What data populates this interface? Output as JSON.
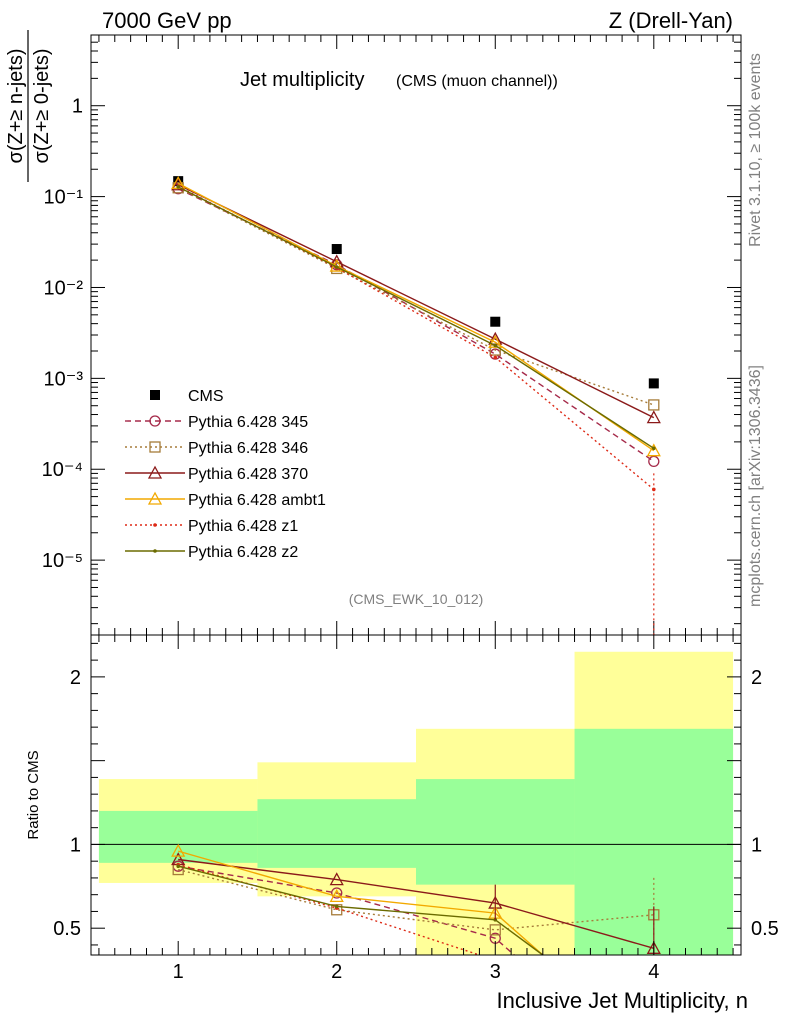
{
  "header": {
    "left": "7000 GeV pp",
    "right": "Z (Drell-Yan)"
  },
  "side_labels": {
    "rivet": "Rivet 3.1.10, ≥ 100k events",
    "mcplots": "mcplots.cern.ch [arXiv:1306.3436]"
  },
  "chart_data": [
    {
      "type": "line",
      "title": "Jet multiplicity",
      "subtitle": "(CMS (muon channel))",
      "analysis_tag": "(CMS_EWK_10_012)",
      "ylabel_num": "σ(Z+≥ n-jets)",
      "ylabel_den": "σ(Z+≥ 0-jets)",
      "yscale": "log",
      "ylim": [
        1.5e-06,
        6
      ],
      "xlim": [
        0.45,
        4.55
      ],
      "legend_position": "lower-left",
      "x": [
        1,
        2,
        3,
        4
      ],
      "yticks": [
        {
          "v": 1,
          "label": "1"
        },
        {
          "v": 0.1,
          "label": "10⁻¹"
        },
        {
          "v": 0.01,
          "label": "10⁻²"
        },
        {
          "v": 0.001,
          "label": "10⁻³"
        },
        {
          "v": 0.0001,
          "label": "10⁻⁴"
        },
        {
          "v": 1e-05,
          "label": "10⁻⁵"
        }
      ],
      "series": [
        {
          "name": "CMS",
          "color": "#000000",
          "marker": "square",
          "values": [
            0.148,
            0.0265,
            0.0042,
            0.00088
          ]
        },
        {
          "name": "Pythia 6.428 345",
          "color": "#a52a4a",
          "marker": "open-circle",
          "dash": "6,4",
          "values": [
            0.122,
            0.0178,
            0.00185,
            0.000122
          ]
        },
        {
          "name": "Pythia 6.428 346",
          "color": "#a67c3a",
          "marker": "open-square",
          "dash": "2,3",
          "values": [
            0.125,
            0.0162,
            0.00205,
            0.00051
          ]
        },
        {
          "name": "Pythia 6.428 370",
          "color": "#8b1a1a",
          "marker": "open-triangle",
          "dash": "",
          "values": [
            0.135,
            0.0192,
            0.0027,
            0.00037
          ]
        },
        {
          "name": "Pythia 6.428 ambt1",
          "color": "#f2a900",
          "marker": "open-triangle",
          "dash": "",
          "values": [
            0.14,
            0.0172,
            0.0025,
            0.00016
          ]
        },
        {
          "name": "Pythia 6.428 z1",
          "color": "#dd2a16",
          "marker": "dot",
          "dash": "2,3",
          "values": [
            0.13,
            0.0165,
            0.0017,
            6e-05
          ]
        },
        {
          "name": "Pythia 6.428 z2",
          "color": "#6b6b00",
          "marker": "dot",
          "dash": "",
          "values": [
            0.128,
            0.0168,
            0.0023,
            0.00017
          ]
        }
      ]
    },
    {
      "type": "line",
      "ylabel": "Ratio to CMS",
      "xlabel": "Inclusive Jet Multiplicity, n",
      "ylim": [
        0.34,
        2.25
      ],
      "xlim": [
        0.45,
        4.55
      ],
      "xticks": [
        "1",
        "2",
        "3",
        "4"
      ],
      "yticks": [
        {
          "v": 0.5,
          "label": "0.5"
        },
        {
          "v": 1,
          "label": "1"
        },
        {
          "v": 2,
          "label": "2"
        }
      ],
      "bands": [
        {
          "x0": 0.5,
          "x1": 1.5,
          "green": [
            0.89,
            1.2
          ],
          "yellow": [
            0.77,
            1.39
          ]
        },
        {
          "x0": 1.5,
          "x1": 2.5,
          "green": [
            0.86,
            1.27
          ],
          "yellow": [
            0.69,
            1.49
          ]
        },
        {
          "x0": 2.5,
          "x1": 3.5,
          "green": [
            0.76,
            1.39
          ],
          "yellow": [
            0.34,
            1.69
          ]
        },
        {
          "x0": 3.5,
          "x1": 4.5,
          "green": [
            0.34,
            1.69
          ],
          "yellow": [
            0.34,
            2.15
          ]
        }
      ],
      "series": [
        {
          "name": "Pythia 6.428 345",
          "x": [
            1,
            2,
            3,
            3.12
          ],
          "values": [
            0.87,
            0.71,
            0.44,
            0.34
          ]
        },
        {
          "name": "Pythia 6.428 346",
          "x": [
            1,
            2,
            3,
            4
          ],
          "values": [
            0.85,
            0.61,
            0.49,
            0.58
          ]
        },
        {
          "name": "Pythia 6.428 370",
          "x": [
            1,
            2,
            3,
            4
          ],
          "values": [
            0.91,
            0.79,
            0.65,
            0.38
          ]
        },
        {
          "name": "Pythia 6.428 ambt1",
          "x": [
            1,
            2,
            3,
            3.3
          ],
          "values": [
            0.96,
            0.69,
            0.59,
            0.34
          ]
        },
        {
          "name": "Pythia 6.428 z1",
          "x": [
            1,
            2,
            2.9
          ],
          "values": [
            0.88,
            0.62,
            0.34
          ]
        },
        {
          "name": "Pythia 6.428 z2",
          "x": [
            1,
            2,
            3,
            3.3
          ],
          "values": [
            0.87,
            0.63,
            0.55,
            0.34
          ]
        }
      ]
    }
  ]
}
